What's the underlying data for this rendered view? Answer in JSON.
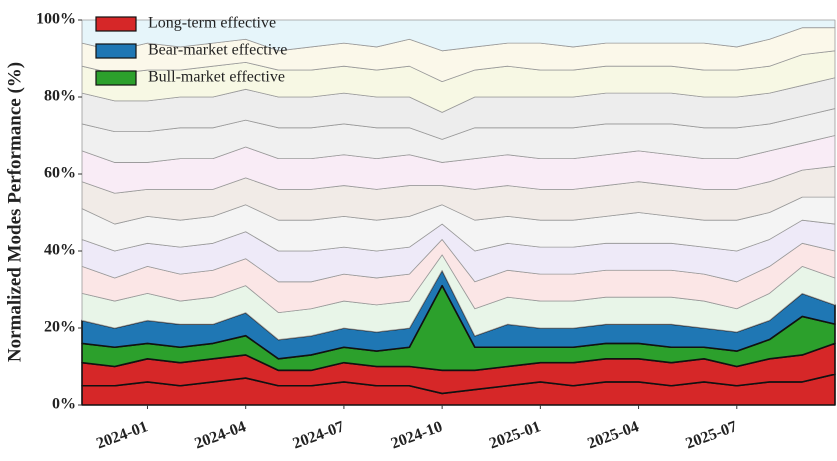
{
  "chart_data": {
    "type": "stacked-area",
    "ylabel": "Normalized Modes Performance (%)",
    "x": [
      "2023-11",
      "2023-12",
      "2024-01",
      "2024-02",
      "2024-03",
      "2024-04",
      "2024-05",
      "2024-06",
      "2024-07",
      "2024-08",
      "2024-09",
      "2024-10",
      "2024-11",
      "2024-12",
      "2025-01",
      "2025-02",
      "2025-03",
      "2025-04",
      "2025-05",
      "2025-06",
      "2025-07",
      "2025-08",
      "2025-09",
      "2025-10"
    ],
    "xlim": [
      "2023-11",
      "2025-10"
    ],
    "xticks": [
      "2024-01",
      "2024-04",
      "2024-07",
      "2024-10",
      "2025-01",
      "2025-04",
      "2025-07"
    ],
    "ylim": [
      0,
      100
    ],
    "yticks": [
      {
        "value": 0,
        "label": "0%"
      },
      {
        "value": 20,
        "label": "20%"
      },
      {
        "value": 40,
        "label": "40%"
      },
      {
        "value": 60,
        "label": "60%"
      },
      {
        "value": 80,
        "label": "80%"
      },
      {
        "value": 100,
        "label": "100%"
      }
    ],
    "legend": "upper left",
    "series": [
      {
        "name": "Long-term effective",
        "color": "#d62728",
        "values": [
          5,
          5,
          6,
          5,
          6,
          7,
          5,
          5,
          6,
          5,
          5,
          3,
          4,
          5,
          6,
          5,
          6,
          6,
          5,
          6,
          5,
          6,
          6,
          8
        ]
      },
      {
        "color": "#d62728",
        "values": [
          6,
          5,
          6,
          6,
          6,
          6,
          4,
          4,
          5,
          5,
          5,
          6,
          5,
          5,
          5,
          6,
          6,
          6,
          6,
          6,
          5,
          6,
          7,
          8
        ]
      },
      {
        "name": "Bull-market effective",
        "color": "#2ca02c",
        "values": [
          5,
          5,
          4,
          4,
          4,
          5,
          3,
          4,
          4,
          4,
          5,
          22,
          6,
          5,
          4,
          4,
          4,
          4,
          4,
          3,
          4,
          5,
          10,
          5
        ]
      },
      {
        "name": "Bear-market effective",
        "color": "#1f77b4",
        "values": [
          6,
          5,
          6,
          6,
          5,
          6,
          5,
          5,
          5,
          5,
          5,
          4,
          3,
          6,
          5,
          5,
          5,
          5,
          6,
          5,
          5,
          5,
          6,
          5
        ]
      },
      {
        "color": "#e8f5e8",
        "values": [
          7,
          7,
          7,
          6,
          7,
          7,
          7,
          7,
          7,
          7,
          7,
          4,
          7,
          7,
          7,
          7,
          7,
          7,
          7,
          7,
          6,
          7,
          7,
          7
        ]
      },
      {
        "color": "#fbe6e6",
        "values": [
          7,
          6,
          7,
          7,
          7,
          7,
          8,
          7,
          7,
          7,
          7,
          4,
          7,
          7,
          7,
          7,
          7,
          7,
          7,
          7,
          7,
          7,
          6,
          7
        ]
      },
      {
        "color": "#eeeaf8",
        "values": [
          7,
          7,
          6,
          7,
          7,
          7,
          8,
          8,
          7,
          7,
          7,
          4,
          8,
          7,
          7,
          7,
          7,
          7,
          7,
          7,
          8,
          7,
          6,
          7
        ]
      },
      {
        "color": "#f4f4f4",
        "values": [
          8,
          7,
          7,
          7,
          7,
          7,
          8,
          8,
          8,
          8,
          8,
          5,
          8,
          7,
          7,
          7,
          7,
          8,
          7,
          7,
          8,
          7,
          6,
          7
        ]
      },
      {
        "color": "#f1ebe7",
        "values": [
          7,
          8,
          7,
          8,
          7,
          7,
          8,
          8,
          8,
          8,
          8,
          5,
          8,
          8,
          8,
          8,
          8,
          8,
          8,
          8,
          8,
          8,
          7,
          8
        ]
      },
      {
        "color": "#f9ecf6",
        "values": [
          8,
          8,
          7,
          8,
          8,
          8,
          8,
          8,
          8,
          8,
          8,
          6,
          8,
          8,
          8,
          8,
          8,
          8,
          8,
          8,
          8,
          8,
          7,
          8
        ]
      },
      {
        "color": "#f0f0f0",
        "values": [
          7,
          8,
          8,
          8,
          8,
          7,
          8,
          8,
          8,
          8,
          7,
          6,
          8,
          7,
          8,
          8,
          8,
          7,
          8,
          8,
          8,
          7,
          7,
          7
        ]
      },
      {
        "color": "#ededed",
        "values": [
          8,
          8,
          8,
          8,
          8,
          8,
          8,
          8,
          8,
          8,
          8,
          7,
          8,
          8,
          8,
          8,
          8,
          8,
          8,
          8,
          8,
          8,
          8,
          8
        ]
      },
      {
        "color": "#f7f8e4",
        "values": [
          7,
          7,
          8,
          7,
          8,
          7,
          7,
          7,
          7,
          7,
          8,
          8,
          7,
          8,
          7,
          7,
          7,
          7,
          7,
          7,
          7,
          7,
          8,
          7
        ]
      },
      {
        "color": "#fbf8ea",
        "values": [
          6,
          6,
          7,
          6,
          6,
          6,
          5,
          6,
          6,
          6,
          7,
          8,
          6,
          6,
          7,
          6,
          6,
          6,
          6,
          7,
          6,
          7,
          7,
          6
        ]
      },
      {
        "color": "#e6f5fa",
        "values": [
          6,
          8,
          6,
          7,
          6,
          5,
          8,
          7,
          6,
          7,
          5,
          8,
          7,
          6,
          6,
          7,
          6,
          6,
          6,
          6,
          7,
          5,
          2,
          2
        ]
      }
    ]
  }
}
